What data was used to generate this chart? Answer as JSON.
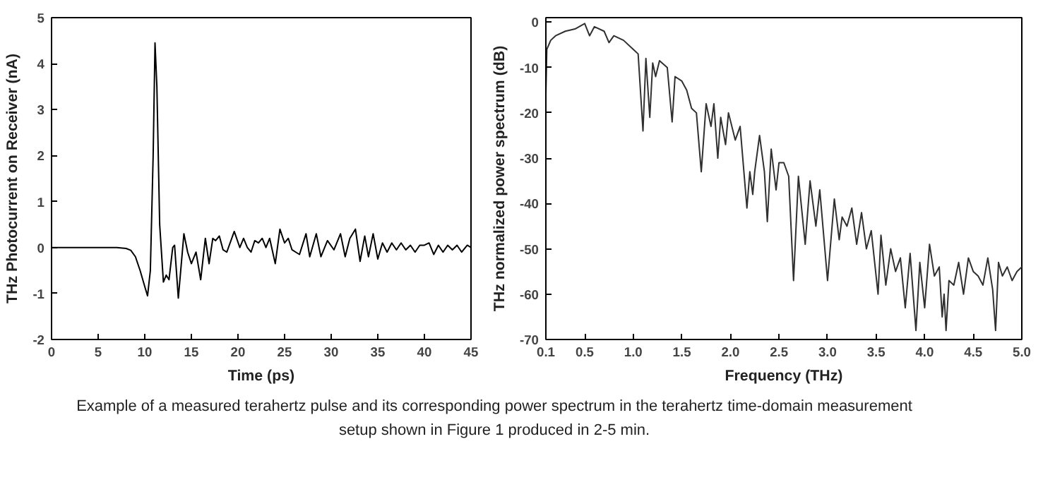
{
  "chart_data": [
    {
      "type": "line",
      "xlabel": "Time (ps)",
      "ylabel": "THz Photocurrent on Receiver (nA)",
      "xlim": [
        0,
        45
      ],
      "ylim": [
        -2,
        5
      ],
      "xticks": [
        0,
        5,
        10,
        15,
        20,
        25,
        30,
        35,
        40,
        45
      ],
      "yticks": [
        -2,
        -1,
        0,
        1,
        2,
        3,
        4,
        5
      ],
      "grid": false,
      "series": [
        {
          "color": "#000000",
          "x": [
            0,
            7,
            8,
            8.5,
            9,
            9.5,
            10,
            10.3,
            10.6,
            10.9,
            11.1,
            11.3,
            11.6,
            12,
            12.3,
            12.6,
            13,
            13.2,
            13.6,
            14.2,
            14.6,
            15,
            15.5,
            16,
            16.5,
            16.9,
            17.3,
            17.6,
            18,
            18.4,
            18.8,
            19.6,
            20.2,
            20.6,
            21,
            21.4,
            21.8,
            22.2,
            22.6,
            23,
            23.4,
            24,
            24.5,
            25,
            25.4,
            25.8,
            26.2,
            26.6,
            27.3,
            27.7,
            28.4,
            28.9,
            29.6,
            30.3,
            31,
            31.5,
            32,
            32.6,
            33.1,
            33.6,
            34,
            34.5,
            35,
            35.5,
            36,
            36.5,
            37,
            37.5,
            38,
            38.5,
            39,
            39.5,
            40,
            40.5,
            41,
            41.5,
            42,
            42.5,
            43,
            43.5,
            44,
            44.6,
            45
          ],
          "values": [
            0,
            0,
            -0.02,
            -0.06,
            -0.2,
            -0.5,
            -0.85,
            -1.05,
            -0.5,
            2.0,
            4.45,
            3.5,
            0.5,
            -0.75,
            -0.6,
            -0.7,
            0.0,
            0.05,
            -1.1,
            0.3,
            -0.1,
            -0.35,
            -0.1,
            -0.7,
            0.2,
            -0.35,
            0.2,
            0.15,
            0.25,
            -0.05,
            -0.1,
            0.35,
            0.0,
            0.2,
            0.0,
            -0.1,
            0.15,
            0.1,
            0.2,
            0.0,
            0.2,
            -0.35,
            0.4,
            0.1,
            0.2,
            -0.05,
            -0.1,
            -0.15,
            0.3,
            -0.2,
            0.3,
            -0.2,
            0.15,
            -0.05,
            0.3,
            -0.2,
            0.2,
            0.4,
            -0.3,
            0.25,
            -0.2,
            0.3,
            -0.25,
            0.1,
            -0.1,
            0.1,
            -0.05,
            0.1,
            -0.05,
            0.05,
            -0.1,
            0.05,
            0.05,
            0.1,
            -0.15,
            0.05,
            -0.1,
            0.05,
            -0.05,
            0.05,
            -0.1,
            0.05,
            0.0
          ]
        }
      ],
      "annotations": [
        "Example of a measured terahertz pulse and its corresponding power spectrum in the terahertz time-domain measurement setup shown in Figure 1 produced in 2-5 min."
      ]
    },
    {
      "type": "line",
      "xlabel": "Frequency (THz)",
      "ylabel": "THz normalized power spectrum (dB)",
      "xlim": [
        0.1,
        5.0
      ],
      "ylim": [
        -70,
        1
      ],
      "xticks": [
        {
          "value": 0.1,
          "label": "0.1"
        },
        {
          "value": 0.5,
          "label": "0.5"
        },
        {
          "value": 1.0,
          "label": "1.0"
        },
        {
          "value": 1.5,
          "label": "1.5"
        },
        {
          "value": 2.0,
          "label": "2.0"
        },
        {
          "value": 2.5,
          "label": "2.5"
        },
        {
          "value": 3.0,
          "label": "3.0"
        },
        {
          "value": 3.5,
          "label": "3.5"
        },
        {
          "value": 4.0,
          "label": "4.0"
        },
        {
          "value": 4.5,
          "label": "4.5"
        },
        {
          "value": 5.0,
          "label": "5.0"
        }
      ],
      "yticks": [
        -70,
        -60,
        -50,
        -40,
        -30,
        -20,
        -10,
        0
      ],
      "grid": false,
      "series": [
        {
          "color": "#303030",
          "x": [
            0.1,
            0.11,
            0.15,
            0.2,
            0.3,
            0.4,
            0.5,
            0.55,
            0.6,
            0.7,
            0.75,
            0.8,
            0.9,
            1.0,
            1.05,
            1.1,
            1.13,
            1.17,
            1.2,
            1.23,
            1.27,
            1.35,
            1.4,
            1.43,
            1.5,
            1.55,
            1.6,
            1.65,
            1.7,
            1.75,
            1.8,
            1.83,
            1.87,
            1.9,
            1.95,
            1.98,
            2.05,
            2.1,
            2.17,
            2.2,
            2.23,
            2.25,
            2.3,
            2.35,
            2.38,
            2.42,
            2.47,
            2.5,
            2.55,
            2.6,
            2.65,
            2.7,
            2.77,
            2.82,
            2.88,
            2.92,
            3.0,
            3.07,
            3.12,
            3.15,
            3.2,
            3.25,
            3.3,
            3.35,
            3.4,
            3.45,
            3.52,
            3.55,
            3.6,
            3.65,
            3.7,
            3.75,
            3.8,
            3.85,
            3.91,
            3.95,
            4.0,
            4.05,
            4.1,
            4.15,
            4.18,
            4.2,
            4.22,
            4.25,
            4.3,
            4.35,
            4.4,
            4.45,
            4.5,
            4.55,
            4.6,
            4.65,
            4.7,
            4.73,
            4.76,
            4.8,
            4.85,
            4.9,
            4.95,
            5.0
          ],
          "values": [
            -16,
            -6,
            -4,
            -3,
            -2,
            -1.5,
            -0.3,
            -3,
            -1,
            -2,
            -4.5,
            -3,
            -4,
            -6,
            -7,
            -24,
            -8,
            -21,
            -9,
            -12,
            -8.5,
            -10,
            -22,
            -12,
            -13,
            -15,
            -19,
            -20,
            -33,
            -18,
            -23,
            -18,
            -30,
            -21,
            -27,
            -20,
            -26,
            -23,
            -41,
            -33,
            -38,
            -33,
            -25,
            -33,
            -44,
            -28,
            -37,
            -31,
            -31,
            -34,
            -57,
            -34,
            -49,
            -35,
            -45,
            -37,
            -57,
            -39,
            -48,
            -43,
            -45,
            -41,
            -49,
            -42,
            -50,
            -46,
            -60,
            -47,
            -58,
            -50,
            -55,
            -52,
            -63,
            -51,
            -68,
            -53,
            -63,
            -49,
            -56,
            -54,
            -65,
            -60,
            -68,
            -57,
            -58,
            -53,
            -60,
            -52,
            -55,
            -56,
            -58,
            -52,
            -59,
            -68,
            -53,
            -56,
            -54,
            -57,
            -55,
            -54
          ]
        }
      ]
    }
  ]
}
